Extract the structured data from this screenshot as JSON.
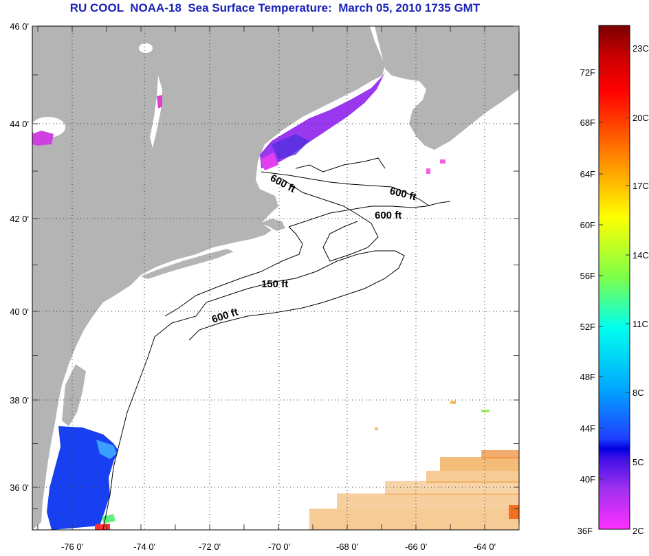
{
  "title": "RU COOL  NOAA-18  Sea Surface Temperature:  March 05, 2010 1735 GMT",
  "map": {
    "lat_labels": [
      "46 0'",
      "44 0'",
      "42 0'",
      "40 0'",
      "38 0'",
      "36 0'"
    ],
    "lon_labels": [
      "-76 0'",
      "-74 0'",
      "-72 0'",
      "-70 0'",
      "-68 0'",
      "-66 0'",
      "-64 0'"
    ],
    "depth_labels": [
      "600 ft",
      "600 ft",
      "600 ft",
      "150 ft",
      "600 ft"
    ],
    "colors": {
      "land": "#b4b4b4",
      "ocean": "#ffffff",
      "cloud": "#ffffff"
    }
  },
  "colorbar": {
    "fahrenheit_labels": [
      "72F",
      "68F",
      "64F",
      "60F",
      "56F",
      "52F",
      "48F",
      "44F",
      "40F",
      "36F"
    ],
    "celsius_labels": [
      "23C",
      "20C",
      "17C",
      "14C",
      "11C",
      "8C",
      "5C",
      "2C"
    ],
    "gradient_stops": [
      "#8b0000",
      "#ff0000",
      "#ff7f00",
      "#ffff00",
      "#66ff33",
      "#00ffff",
      "#00a0ff",
      "#0000ff",
      "#8040ff",
      "#ff33ff"
    ]
  }
}
